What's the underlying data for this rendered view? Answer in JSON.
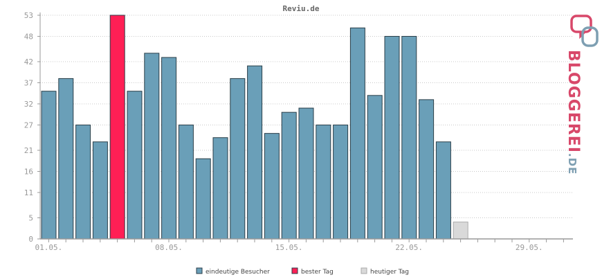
{
  "chart_data": {
    "type": "bar",
    "title": "Reviu.de",
    "categories": [
      "01.05.",
      "02.05.",
      "03.05.",
      "04.05.",
      "05.05.",
      "06.05.",
      "07.05.",
      "08.05.",
      "09.05.",
      "10.05.",
      "11.05.",
      "12.05.",
      "13.05.",
      "14.05.",
      "15.05.",
      "16.05.",
      "17.05.",
      "18.05.",
      "19.05.",
      "20.05.",
      "21.05.",
      "22.05.",
      "23.05.",
      "24.05.",
      "25.05.",
      "26.05.",
      "27.05.",
      "28.05.",
      "29.05.",
      "30.05.",
      "31.05."
    ],
    "x_tick_labels": [
      "01.05.",
      "08.05.",
      "15.05.",
      "22.05.",
      "29.05."
    ],
    "y_ticks": [
      0,
      5,
      11,
      16,
      21,
      27,
      32,
      37,
      42,
      48,
      53
    ],
    "ylim": [
      0,
      53
    ],
    "series": [
      {
        "name": "eindeutige Besucher",
        "color": "#6a9fb8",
        "values": [
          35,
          38,
          27,
          23,
          null,
          35,
          44,
          43,
          27,
          19,
          24,
          38,
          41,
          25,
          30,
          31,
          27,
          27,
          50,
          34,
          48,
          48,
          33,
          23,
          null,
          null,
          null,
          null,
          null,
          null,
          null
        ]
      },
      {
        "name": "bester Tag",
        "color": "#ff1f55",
        "values": [
          null,
          null,
          null,
          null,
          53,
          null,
          null,
          null,
          null,
          null,
          null,
          null,
          null,
          null,
          null,
          null,
          null,
          null,
          null,
          null,
          null,
          null,
          null,
          null,
          null,
          null,
          null,
          null,
          null,
          null,
          null
        ]
      },
      {
        "name": "heutiger Tag",
        "color": "#d9d9d9",
        "values": [
          null,
          null,
          null,
          null,
          null,
          null,
          null,
          null,
          null,
          null,
          null,
          null,
          null,
          null,
          null,
          null,
          null,
          null,
          null,
          null,
          null,
          null,
          null,
          null,
          4,
          null,
          null,
          null,
          null,
          null,
          null
        ]
      }
    ],
    "grid": true,
    "legend_position": "bottom-center"
  },
  "logo": {
    "text_main": "BLOGGEREI",
    "text_suffix": ".DE",
    "color_main": "#d8486a",
    "color_suffix": "#7e9fb2"
  }
}
